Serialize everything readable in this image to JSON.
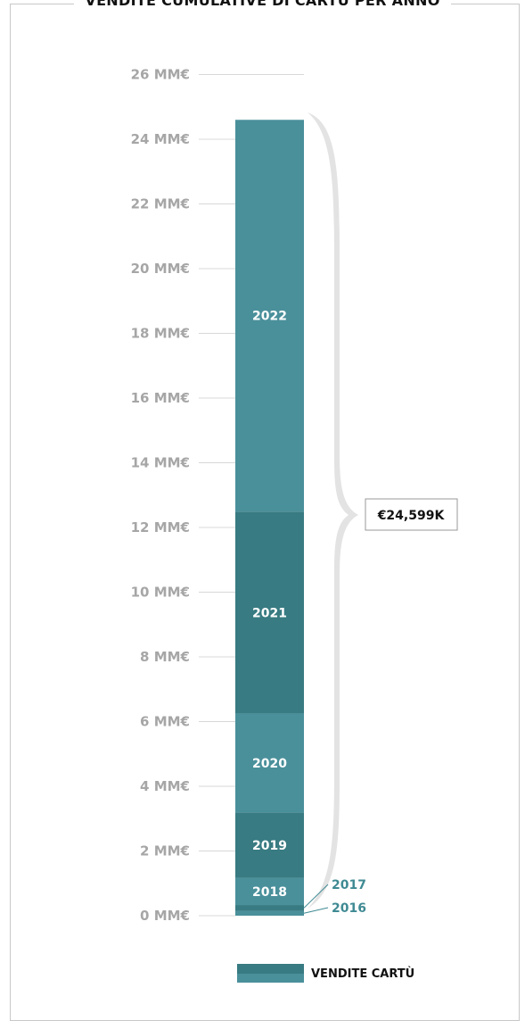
{
  "chart_data": {
    "type": "bar",
    "stacked": true,
    "title": "VENDITE CUMULATIVE DI CARTÙ PER ANNO",
    "ylim": [
      0,
      26
    ],
    "yticks": [
      0,
      2,
      4,
      6,
      8,
      10,
      12,
      14,
      16,
      18,
      20,
      22,
      24,
      26
    ],
    "ytick_suffix": " MM€",
    "segments": [
      {
        "label": "2016",
        "value": 0.15,
        "color": "#4a909b",
        "label_position": "side"
      },
      {
        "label": "2017",
        "value": 0.18,
        "color": "#387b82",
        "label_position": "side"
      },
      {
        "label": "2018",
        "value": 0.84,
        "color": "#4a909b",
        "label_position": "inside"
      },
      {
        "label": "2019",
        "value": 2.02,
        "color": "#387b82",
        "label_position": "inside"
      },
      {
        "label": "2020",
        "value": 3.06,
        "color": "#4a909b",
        "label_position": "inside"
      },
      {
        "label": "2021",
        "value": 6.24,
        "color": "#387b82",
        "label_position": "inside"
      },
      {
        "label": "2022",
        "value": 12.11,
        "color": "#4a909b",
        "label_position": "inside"
      }
    ],
    "total_label": "€24,599K",
    "legend": {
      "label": "VENDITE CARTÙ",
      "colors": [
        "#387b82",
        "#4a909b"
      ],
      "placement": "bottom-center"
    },
    "grid": false
  }
}
